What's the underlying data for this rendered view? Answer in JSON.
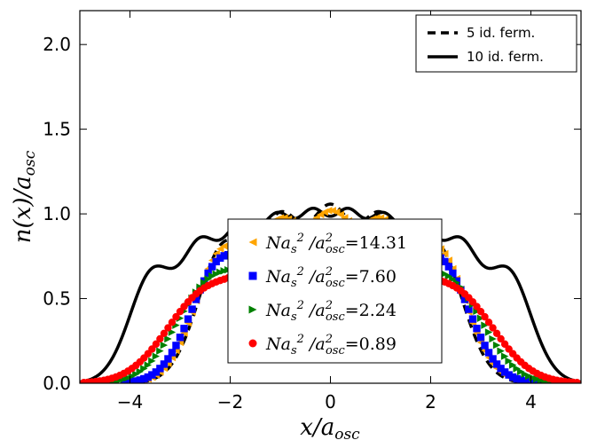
{
  "chart_data": {
    "type": "line",
    "title": "",
    "xlabel": "x/a_osc",
    "ylabel": "n(x)/a_osc",
    "xlim": [
      -5,
      5
    ],
    "ylim": [
      0,
      2.2
    ],
    "x_ticks": [
      -4,
      -2,
      0,
      2,
      4
    ],
    "x_tick_labels": [
      "−4",
      "−2",
      "0",
      "2",
      "4"
    ],
    "y_ticks": [
      0,
      0.5,
      1.0,
      1.5,
      2.0
    ],
    "y_tick_labels": [
      "0.0",
      "0.5",
      "1.0",
      "1.5",
      "2.0"
    ],
    "grid": false,
    "legends": [
      {
        "placement": "top-right",
        "entries": [
          "5 id. ferm.",
          "10 id. ferm."
        ]
      },
      {
        "placement": "lower-center",
        "entries": [
          "14.31",
          "7.60",
          "2.24",
          "0.89"
        ]
      }
    ],
    "series": [
      {
        "name": "5 id. ferm.",
        "style": "dashed-line",
        "color": "#000000",
        "N": 5,
        "scale": 1.0
      },
      {
        "name": "10 id. ferm.",
        "style": "solid-line",
        "color": "#000000",
        "N": 10,
        "scale": 0.71
      },
      {
        "name": "Na_s^2/a_osc^2=14.31",
        "value": "14.31",
        "marker": "triangle-left",
        "color": "#ffa500",
        "N": 5,
        "scale": 0.98,
        "smooth": 0.35,
        "widen": 1.02
      },
      {
        "name": "Na_s^2/a_osc^2=7.60",
        "value": "7.60",
        "marker": "square",
        "color": "#0000ff",
        "N": 5,
        "scale": 0.92,
        "smooth": 0.5,
        "widen": 1.04
      },
      {
        "name": "Na_s^2/a_osc^2=2.24",
        "value": "2.24",
        "marker": "triangle-right",
        "color": "#008000",
        "N": 5,
        "scale": 0.81,
        "smooth": 0.75,
        "widen": 1.13
      },
      {
        "name": "Na_s^2/a_osc^2=0.89",
        "value": "0.89",
        "marker": "circle",
        "color": "#ff0000",
        "N": 5,
        "scale": 0.74,
        "smooth": 0.9,
        "widen": 1.2
      }
    ]
  },
  "legend": {
    "fermions": [
      "5 id. ferm.",
      "10 id. ferm."
    ],
    "interaction_values": [
      "14.31",
      "7.60",
      "2.24",
      "0.89"
    ]
  }
}
